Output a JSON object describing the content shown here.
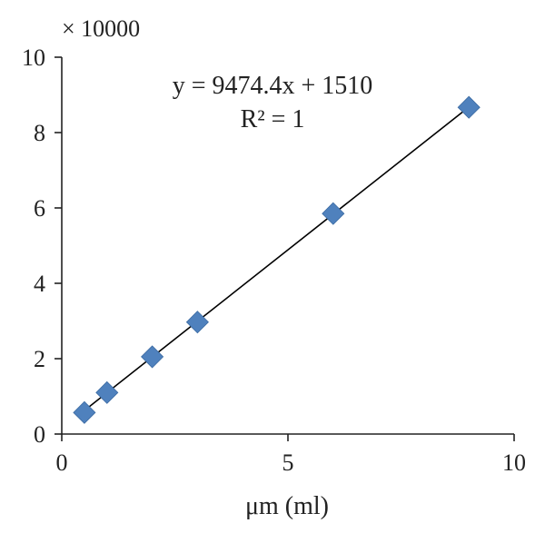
{
  "chart_data": {
    "type": "scatter",
    "title": "",
    "xlabel": "μm (ml)",
    "ylabel": "",
    "y_multiplier_label": "× 10000",
    "xlim": [
      0,
      10
    ],
    "ylim": [
      0,
      10
    ],
    "x_ticks": [
      "0",
      "5",
      "10"
    ],
    "y_ticks": [
      "0",
      "2",
      "4",
      "6",
      "8",
      "10"
    ],
    "grid": false,
    "legend": "none",
    "marker_color": "#4f81bd",
    "series": [
      {
        "points": [
          {
            "x": 0.5,
            "y": 0.57
          },
          {
            "x": 1,
            "y": 1.1
          },
          {
            "x": 2,
            "y": 2.05
          },
          {
            "x": 3,
            "y": 2.97
          },
          {
            "x": 6,
            "y": 5.85
          },
          {
            "x": 9,
            "y": 8.67
          }
        ]
      }
    ],
    "trendline": {
      "equation_text": "y = 9474.4x + 1510",
      "r_squared_text": "R² = 1",
      "slope": 0.94744,
      "intercept": 0.151,
      "x_range": [
        0.5,
        9
      ]
    }
  }
}
